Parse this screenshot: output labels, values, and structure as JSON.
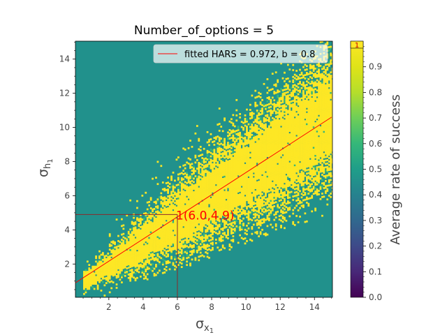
{
  "chart_data": {
    "type": "heatmap",
    "title": "Number_of_options = 5",
    "xlabel_base": "σ",
    "xlabel_sub": "x",
    "xlabel_subsub": "1",
    "ylabel_base": "σ",
    "ylabel_sub": "h",
    "ylabel_subsub": "1",
    "xlim": [
      0.05,
      15.05
    ],
    "ylim": [
      0.05,
      15.05
    ],
    "xticks": [
      2,
      4,
      6,
      8,
      10,
      12,
      14
    ],
    "yticks": [
      2,
      4,
      6,
      8,
      10,
      12,
      14
    ],
    "colorbar": {
      "label": "Average rate of success",
      "range": [
        0.0,
        1.0
      ],
      "ticks": [
        "0.0",
        "0.1",
        "0.2",
        "0.3",
        "0.4",
        "0.5",
        "0.6",
        "0.7",
        "0.8",
        "0.9"
      ],
      "top_marker": "1",
      "colormap": "viridis"
    },
    "background_value": 0.5,
    "success_region": {
      "description_value": 1.0,
      "center_line": {
        "slope": 0.67,
        "intercept": 0.55
      },
      "samples": [
        {
          "x": 1.0,
          "y_low": 0.9,
          "y_high": 2.2
        },
        {
          "x": 2.0,
          "y_low": 1.2,
          "y_high": 3.0
        },
        {
          "x": 3.0,
          "y_low": 1.6,
          "y_high": 4.0
        },
        {
          "x": 4.0,
          "y_low": 2.0,
          "y_high": 5.2
        },
        {
          "x": 6.0,
          "y_low": 2.6,
          "y_high": 7.0
        },
        {
          "x": 8.0,
          "y_low": 3.4,
          "y_high": 8.6
        },
        {
          "x": 10.0,
          "y_low": 4.2,
          "y_high": 10.0
        },
        {
          "x": 12.0,
          "y_low": 5.0,
          "y_high": 11.6
        },
        {
          "x": 14.0,
          "y_low": 5.6,
          "y_high": 12.6
        },
        {
          "x": 15.0,
          "y_low": 5.8,
          "y_high": 13.2
        }
      ]
    },
    "fitted_line": {
      "label": "fitted HARS = 0.972, b = 0.8",
      "color": "#ff0000",
      "x0": 0.05,
      "y0": 0.9,
      "x1": 15.0,
      "y1": 10.6
    },
    "annotation": {
      "label": "1(6.0,4.9)",
      "x": 6.0,
      "y": 4.9,
      "color": "#ff0000"
    },
    "legend_position": "upper right",
    "grid": false
  }
}
